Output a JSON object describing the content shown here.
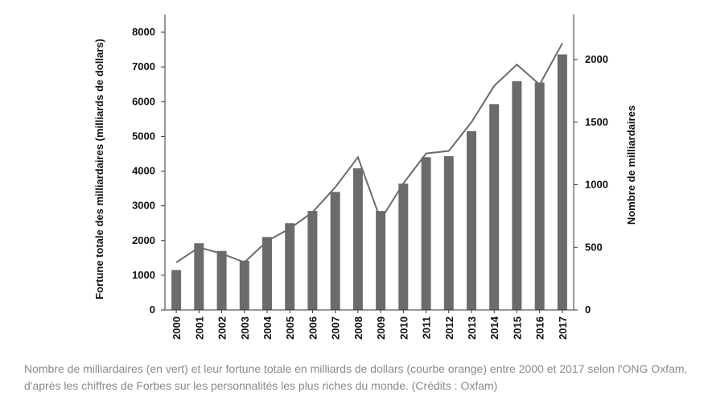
{
  "chart_data": {
    "type": "bar",
    "categories": [
      "2000",
      "2001",
      "2002",
      "2003",
      "2004",
      "2005",
      "2006",
      "2007",
      "2008",
      "2009",
      "2010",
      "2011",
      "2012",
      "2013",
      "2014",
      "2015",
      "2016",
      "2017"
    ],
    "series": [
      {
        "type": "bar",
        "axis": "left",
        "color": "#6b6b6b",
        "values": [
          1150,
          1920,
          1700,
          1420,
          2100,
          2500,
          2850,
          3400,
          4080,
          2850,
          3640,
          4400,
          4430,
          5150,
          5930,
          6590,
          6550,
          7360
        ]
      },
      {
        "type": "line",
        "axis": "right",
        "color": "#6b6b6b",
        "values": [
          380,
          500,
          450,
          380,
          550,
          650,
          780,
          980,
          1220,
          720,
          1010,
          1250,
          1270,
          1500,
          1790,
          1960,
          1800,
          2130
        ]
      }
    ],
    "ylabel": "Fortune totale des milliardaires (milliards de dollars)",
    "ylabel_right": "Nombre de milliardaires",
    "ylim": [
      0,
      8000
    ],
    "yticks": [
      0,
      1000,
      2000,
      3000,
      4000,
      5000,
      6000,
      7000,
      8000
    ],
    "ylim_right": [
      0,
      2000
    ],
    "yticks_right": [
      0,
      500,
      1000,
      1500,
      2000
    ],
    "grid": false,
    "legend": "none"
  },
  "caption": "Nombre de milliardaires (en vert) et leur fortune totale en milliards de dollars (courbe orange) entre 2000 et 2017 selon l'ONG Oxfam, d'après les chiffres de Forbes sur les personnalités les plus riches du monde. (Crédits : Oxfam)"
}
